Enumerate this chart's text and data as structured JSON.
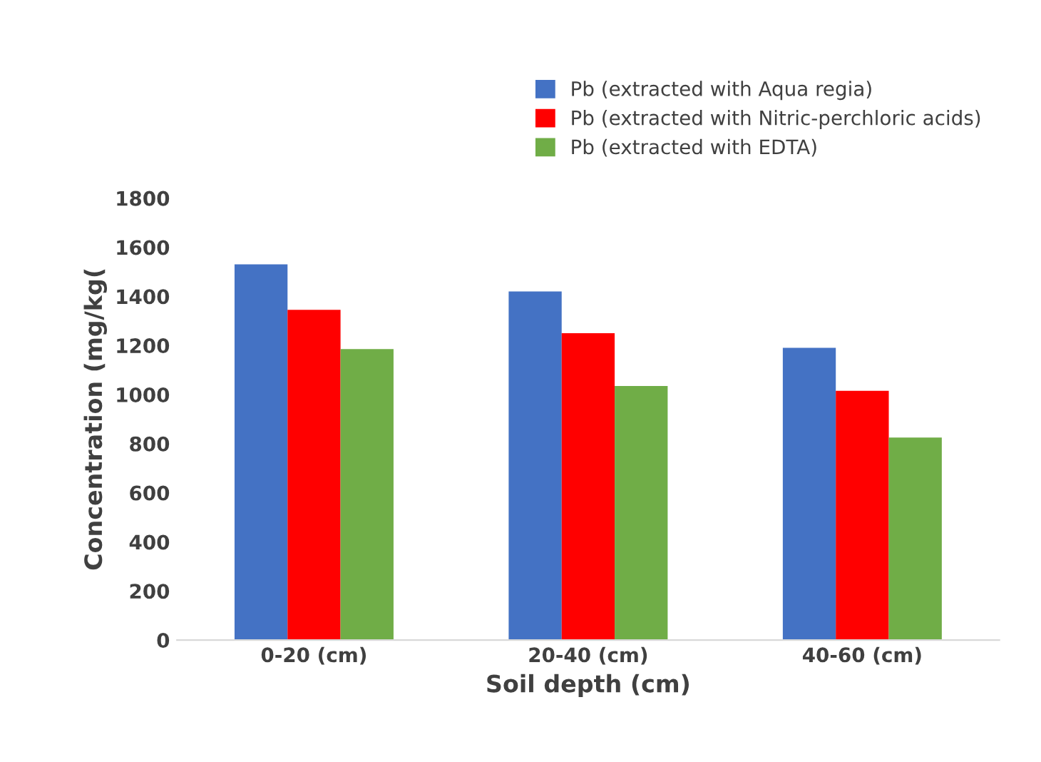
{
  "chart_data": {
    "type": "bar",
    "xlabel": "Soil depth (cm)",
    "ylabel": "Concentration (mg/kg(",
    "categories": [
      "0-20 (cm)",
      "20-40 (cm)",
      "40-60 (cm)"
    ],
    "series": [
      {
        "name": "Pb (extracted with Aqua regia)",
        "color": "#4472c4",
        "values": [
          1530,
          1420,
          1190
        ]
      },
      {
        "name": "Pb (extracted with Nitric-perchloric acids)",
        "color": "#ff0000",
        "values": [
          1345,
          1250,
          1015
        ]
      },
      {
        "name": "Pb (extracted with EDTA)",
        "color": "#70ad47",
        "values": [
          1185,
          1035,
          825
        ]
      }
    ],
    "ylim": [
      0,
      1800
    ],
    "yticks": [
      0,
      200,
      400,
      600,
      800,
      1000,
      1200,
      1400,
      1600,
      1800
    ],
    "grid": false,
    "legend": "top right"
  }
}
